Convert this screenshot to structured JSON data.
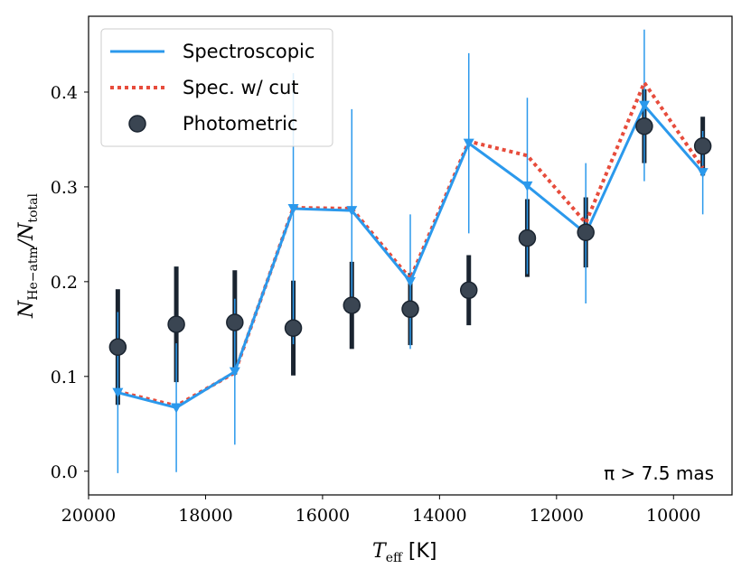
{
  "chart_data": {
    "type": "line",
    "xlabel": "T_eff [K]",
    "xlabel_main": "T",
    "xlabel_sub": "eff",
    "xlabel_unit": " [K]",
    "ylabel": "N_He-atm / N_total",
    "ylabel_num": "N",
    "ylabel_num_sub": "He−atm",
    "ylabel_den": "/N",
    "ylabel_den_sub": "total",
    "xlim": [
      20000,
      9000
    ],
    "ylim": [
      -0.025,
      0.48
    ],
    "xticks": [
      20000,
      18000,
      16000,
      14000,
      12000,
      10000
    ],
    "xtick_labels": [
      "20000",
      "18000",
      "16000",
      "14000",
      "12000",
      "10000"
    ],
    "yticks": [
      0.0,
      0.1,
      0.2,
      0.3,
      0.4
    ],
    "ytick_labels": [
      "0.0",
      "0.1",
      "0.2",
      "0.3",
      "0.4"
    ],
    "annotation": "π > 7.5 mas",
    "series": [
      {
        "name": "Spectroscopic",
        "style": "solid",
        "color": "#2b99ec",
        "marker": "triangle-down",
        "x": [
          19500,
          18500,
          17500,
          16500,
          15500,
          14500,
          13500,
          12500,
          11500,
          10500,
          9500
        ],
        "y": [
          0.083,
          0.067,
          0.105,
          0.277,
          0.275,
          0.2,
          0.346,
          0.301,
          0.251,
          0.386,
          0.315
        ],
        "err": [
          0.085,
          0.068,
          0.077,
          0.143,
          0.107,
          0.071,
          0.095,
          0.093,
          0.074,
          0.08,
          0.044
        ]
      },
      {
        "name": "Spec. w/ cut",
        "style": "dotted",
        "color": "#e74c3c",
        "x": [
          19500,
          18500,
          17500,
          16500,
          15500,
          14500,
          13500,
          12500,
          11500,
          10500,
          9500
        ],
        "y": [
          0.084,
          0.069,
          0.104,
          0.278,
          0.277,
          0.203,
          0.348,
          0.333,
          0.262,
          0.41,
          0.32
        ]
      },
      {
        "name": "Photometric",
        "style": "marker",
        "color": "#1a2430",
        "marker": "circle",
        "x": [
          19500,
          18500,
          17500,
          16500,
          15500,
          14500,
          13500,
          12500,
          11500,
          10500,
          9500
        ],
        "y": [
          0.131,
          0.155,
          0.157,
          0.151,
          0.175,
          0.171,
          0.191,
          0.246,
          0.252,
          0.364,
          0.343
        ],
        "err": [
          0.061,
          0.061,
          0.055,
          0.05,
          0.046,
          0.038,
          0.037,
          0.041,
          0.037,
          0.039,
          0.031
        ]
      }
    ]
  }
}
